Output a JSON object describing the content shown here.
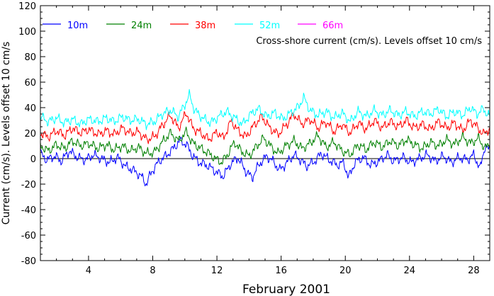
{
  "chart_data": {
    "type": "line",
    "title": "",
    "annotation": "Cross-shore current (cm/s). Levels offset 10 cm/s",
    "xlabel": "February 2001",
    "ylabel": "Current (cm/s). Levels offset 10 cm/s",
    "xlim": [
      1,
      29
    ],
    "ylim": [
      -80,
      120
    ],
    "xticks": [
      4,
      8,
      12,
      16,
      20,
      24,
      28
    ],
    "yticks": [
      -80,
      -60,
      -40,
      -20,
      0,
      20,
      40,
      60,
      80,
      100,
      120
    ],
    "zero_line": 0,
    "legend_position": "top-left",
    "series": [
      {
        "name": "10m",
        "color": "#0000ff",
        "offset": 0,
        "keypoints": [
          [
            1.0,
            4
          ],
          [
            1.4,
            -1
          ],
          [
            1.9,
            2
          ],
          [
            2.3,
            -2
          ],
          [
            2.8,
            6
          ],
          [
            3.3,
            1
          ],
          [
            3.8,
            -1
          ],
          [
            4.3,
            3
          ],
          [
            4.8,
            0
          ],
          [
            5.3,
            -3
          ],
          [
            5.8,
            1
          ],
          [
            6.3,
            -6
          ],
          [
            6.9,
            -10
          ],
          [
            7.3,
            -14
          ],
          [
            7.6,
            -20
          ],
          [
            7.9,
            -11
          ],
          [
            8.4,
            -2
          ],
          [
            8.9,
            3
          ],
          [
            9.2,
            7
          ],
          [
            9.7,
            14
          ],
          [
            10.1,
            11
          ],
          [
            10.5,
            2
          ],
          [
            10.9,
            -3
          ],
          [
            11.5,
            -6
          ],
          [
            11.9,
            -10
          ],
          [
            12.4,
            -14
          ],
          [
            12.8,
            -5
          ],
          [
            13.3,
            1
          ],
          [
            13.8,
            -10
          ],
          [
            14.2,
            -15
          ],
          [
            14.6,
            -5
          ],
          [
            15.1,
            2
          ],
          [
            15.5,
            -2
          ],
          [
            15.9,
            -9
          ],
          [
            16.3,
            -4
          ],
          [
            16.8,
            3
          ],
          [
            17.2,
            -1
          ],
          [
            17.6,
            -6
          ],
          [
            18.1,
            -2
          ],
          [
            18.5,
            4
          ],
          [
            19.0,
            -1
          ],
          [
            19.5,
            -5
          ],
          [
            19.9,
            -3
          ],
          [
            20.2,
            -15
          ],
          [
            20.6,
            -3
          ],
          [
            21.1,
            1
          ],
          [
            21.6,
            -5
          ],
          [
            22.1,
            -2
          ],
          [
            22.6,
            3
          ],
          [
            23.0,
            -2
          ],
          [
            23.6,
            1
          ],
          [
            24.1,
            -3
          ],
          [
            24.6,
            0
          ],
          [
            25.1,
            3
          ],
          [
            25.6,
            -2
          ],
          [
            26.1,
            2
          ],
          [
            26.6,
            -3
          ],
          [
            27.1,
            1
          ],
          [
            27.6,
            -1
          ],
          [
            28.0,
            3
          ],
          [
            28.4,
            -8
          ],
          [
            28.7,
            10
          ],
          [
            29.0,
            6
          ]
        ]
      },
      {
        "name": "24m",
        "color": "#008000",
        "offset": 10,
        "keypoints": [
          [
            1.0,
            10
          ],
          [
            1.5,
            6
          ],
          [
            2.0,
            11
          ],
          [
            2.5,
            8
          ],
          [
            3.0,
            14
          ],
          [
            3.5,
            10
          ],
          [
            4.0,
            12
          ],
          [
            4.6,
            8
          ],
          [
            5.1,
            11
          ],
          [
            5.6,
            7
          ],
          [
            6.1,
            10
          ],
          [
            6.6,
            6
          ],
          [
            7.1,
            9
          ],
          [
            7.6,
            4
          ],
          [
            8.1,
            5
          ],
          [
            8.6,
            13
          ],
          [
            9.1,
            20
          ],
          [
            9.6,
            14
          ],
          [
            10.1,
            21
          ],
          [
            10.5,
            12
          ],
          [
            11.0,
            8
          ],
          [
            11.5,
            4
          ],
          [
            11.9,
            0
          ],
          [
            12.3,
            -3
          ],
          [
            12.7,
            4
          ],
          [
            13.1,
            13
          ],
          [
            13.5,
            6
          ],
          [
            14.0,
            2
          ],
          [
            14.5,
            10
          ],
          [
            14.9,
            16
          ],
          [
            15.4,
            9
          ],
          [
            15.8,
            4
          ],
          [
            16.3,
            10
          ],
          [
            16.8,
            14
          ],
          [
            17.3,
            8
          ],
          [
            17.8,
            12
          ],
          [
            18.3,
            18
          ],
          [
            18.8,
            9
          ],
          [
            19.3,
            13
          ],
          [
            19.8,
            6
          ],
          [
            20.3,
            3
          ],
          [
            20.8,
            11
          ],
          [
            21.3,
            7
          ],
          [
            21.8,
            13
          ],
          [
            22.3,
            9
          ],
          [
            22.8,
            14
          ],
          [
            23.3,
            10
          ],
          [
            23.8,
            15
          ],
          [
            24.3,
            11
          ],
          [
            24.8,
            8
          ],
          [
            25.3,
            13
          ],
          [
            25.8,
            10
          ],
          [
            26.3,
            15
          ],
          [
            26.8,
            11
          ],
          [
            27.3,
            17
          ],
          [
            27.8,
            12
          ],
          [
            28.3,
            16
          ],
          [
            28.7,
            8
          ],
          [
            29.0,
            12
          ]
        ]
      },
      {
        "name": "38m",
        "color": "#ff0000",
        "offset": 20,
        "keypoints": [
          [
            1.0,
            20
          ],
          [
            1.5,
            17
          ],
          [
            2.0,
            22
          ],
          [
            2.5,
            18
          ],
          [
            3.0,
            24
          ],
          [
            3.5,
            20
          ],
          [
            4.0,
            23
          ],
          [
            4.6,
            19
          ],
          [
            5.1,
            22
          ],
          [
            5.6,
            19
          ],
          [
            6.1,
            24
          ],
          [
            6.6,
            20
          ],
          [
            7.1,
            21
          ],
          [
            7.6,
            15
          ],
          [
            8.1,
            17
          ],
          [
            8.6,
            26
          ],
          [
            9.1,
            34
          ],
          [
            9.6,
            24
          ],
          [
            10.1,
            36
          ],
          [
            10.5,
            24
          ],
          [
            11.0,
            20
          ],
          [
            11.5,
            15
          ],
          [
            12.0,
            21
          ],
          [
            12.4,
            16
          ],
          [
            12.9,
            30
          ],
          [
            13.3,
            22
          ],
          [
            13.8,
            17
          ],
          [
            14.3,
            26
          ],
          [
            14.8,
            33
          ],
          [
            15.3,
            24
          ],
          [
            15.8,
            19
          ],
          [
            16.3,
            26
          ],
          [
            16.8,
            35
          ],
          [
            17.3,
            27
          ],
          [
            17.8,
            31
          ],
          [
            18.3,
            24
          ],
          [
            18.8,
            29
          ],
          [
            19.3,
            21
          ],
          [
            19.8,
            27
          ],
          [
            20.3,
            20
          ],
          [
            20.8,
            28
          ],
          [
            21.3,
            23
          ],
          [
            21.8,
            30
          ],
          [
            22.3,
            24
          ],
          [
            22.8,
            29
          ],
          [
            23.3,
            25
          ],
          [
            23.8,
            30
          ],
          [
            24.3,
            24
          ],
          [
            24.8,
            27
          ],
          [
            25.3,
            23
          ],
          [
            25.8,
            29
          ],
          [
            26.3,
            24
          ],
          [
            26.8,
            28
          ],
          [
            27.3,
            22
          ],
          [
            27.8,
            30
          ],
          [
            28.2,
            25
          ],
          [
            28.6,
            19
          ],
          [
            29.0,
            24
          ]
        ]
      },
      {
        "name": "52m",
        "color": "#00ffff",
        "offset": 30,
        "keypoints": [
          [
            1.0,
            33
          ],
          [
            1.5,
            29
          ],
          [
            2.0,
            32
          ],
          [
            2.5,
            28
          ],
          [
            3.0,
            31
          ],
          [
            3.5,
            27
          ],
          [
            4.0,
            31
          ],
          [
            4.6,
            29
          ],
          [
            5.1,
            32
          ],
          [
            5.6,
            29
          ],
          [
            6.1,
            33
          ],
          [
            6.6,
            30
          ],
          [
            7.1,
            31
          ],
          [
            7.6,
            27
          ],
          [
            8.1,
            29
          ],
          [
            8.6,
            35
          ],
          [
            9.1,
            38
          ],
          [
            9.6,
            33
          ],
          [
            10.1,
            45
          ],
          [
            10.3,
            50
          ],
          [
            10.6,
            38
          ],
          [
            11.1,
            32
          ],
          [
            11.6,
            28
          ],
          [
            12.1,
            33
          ],
          [
            12.6,
            37
          ],
          [
            13.1,
            32
          ],
          [
            13.6,
            27
          ],
          [
            14.1,
            35
          ],
          [
            14.6,
            39
          ],
          [
            15.1,
            33
          ],
          [
            15.6,
            36
          ],
          [
            16.1,
            31
          ],
          [
            16.6,
            36
          ],
          [
            17.1,
            41
          ],
          [
            17.4,
            48
          ],
          [
            17.8,
            38
          ],
          [
            18.3,
            34
          ],
          [
            18.8,
            37
          ],
          [
            19.3,
            32
          ],
          [
            19.8,
            36
          ],
          [
            20.3,
            29
          ],
          [
            20.8,
            37
          ],
          [
            21.3,
            33
          ],
          [
            21.8,
            38
          ],
          [
            22.3,
            34
          ],
          [
            22.8,
            38
          ],
          [
            23.3,
            34
          ],
          [
            23.8,
            37
          ],
          [
            24.3,
            33
          ],
          [
            24.8,
            37
          ],
          [
            25.3,
            35
          ],
          [
            25.8,
            39
          ],
          [
            26.3,
            33
          ],
          [
            26.8,
            37
          ],
          [
            27.3,
            34
          ],
          [
            27.8,
            40
          ],
          [
            28.2,
            35
          ],
          [
            28.6,
            39
          ],
          [
            29.0,
            33
          ]
        ]
      },
      {
        "name": "66m",
        "color": "#ff00ff",
        "offset": 40,
        "keypoints": []
      }
    ]
  }
}
